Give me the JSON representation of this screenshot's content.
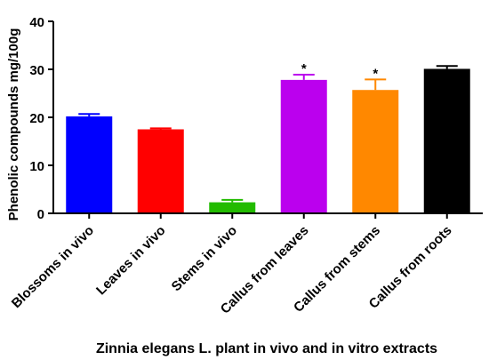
{
  "chart_data": {
    "type": "bar",
    "categories": [
      "Blossoms in vivo",
      "Leaves in vivo",
      "Stems in vivo",
      "Callus from leaves",
      "Callus from stems",
      "Callus from roots"
    ],
    "values": [
      20.2,
      17.5,
      2.3,
      27.8,
      25.7,
      30.1
    ],
    "errors": [
      0.5,
      0.2,
      0.5,
      1.1,
      2.2,
      0.6
    ],
    "significance": [
      "",
      "",
      "",
      "*",
      "*",
      ""
    ],
    "colors": [
      "#0000FF",
      "#FF0000",
      "#22BB00",
      "#BB00EE",
      "#FF8800",
      "#000000"
    ],
    "ylabel": "Phenolic compounds mg/100g",
    "xlabel": "Zinnia elegans L. plant in vivo and in vitro extracts",
    "ylim": [
      0,
      40
    ],
    "yticks": [
      0,
      10,
      20,
      30,
      40
    ],
    "grid": false,
    "legend": "none"
  }
}
